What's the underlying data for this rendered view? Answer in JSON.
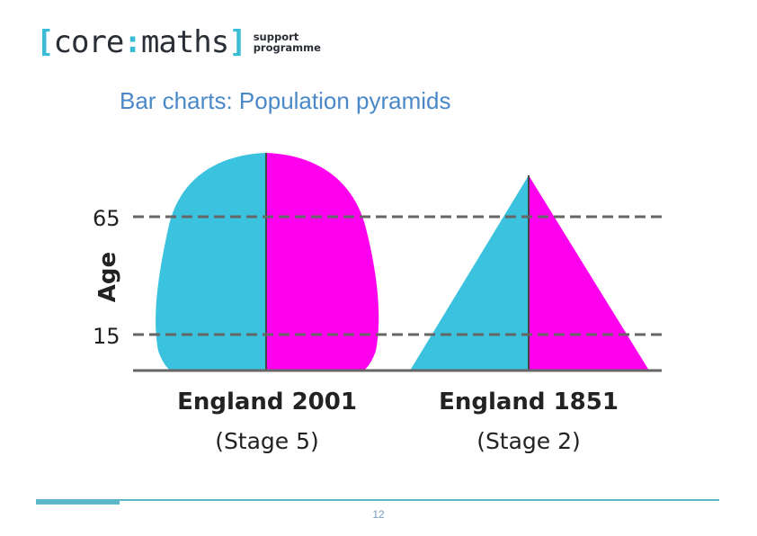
{
  "logo": {
    "bracket_open": "[",
    "word_core": "core",
    "separator": ":",
    "word_maths": "maths",
    "bracket_close": "]",
    "sub_line1": "support",
    "sub_line2": "programme"
  },
  "title": "Bar charts: Population pyramids",
  "axis": {
    "label": "Age",
    "ticks": [
      "65",
      "15"
    ]
  },
  "pyramids": [
    {
      "name": "England 2001",
      "stage": "(Stage 5)",
      "shape": "dome"
    },
    {
      "name": "England 1851",
      "stage": "(Stage 2)",
      "shape": "triangle"
    }
  ],
  "colors": {
    "male": "#3ac2de",
    "female": "#ff00ee",
    "dashed_line": "#666666",
    "baseline": "#666666",
    "title": "#4a88c8",
    "footer": "#5bb8c8"
  },
  "page_number": "12"
}
